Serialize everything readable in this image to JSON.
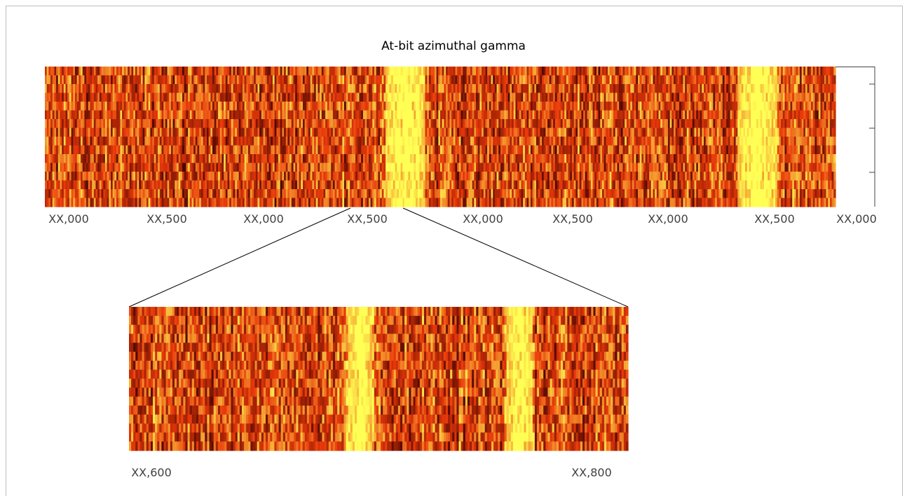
{
  "chart_data": [
    {
      "type": "heatmap",
      "title": "At-bit azimuthal gamma",
      "x_tick_labels": [
        "XX,000",
        "XX,500",
        "XX,000",
        "XX,500",
        "XX,000",
        "XX,500",
        "XX,000",
        "XX,500",
        "XX,000"
      ],
      "colormap": "hot",
      "colors": {
        "low": "#330000",
        "mid": "#e8380a",
        "high": "#ffff55"
      },
      "bright_bands": [
        0.455,
        0.9
      ],
      "rows": 16,
      "grid": false
    },
    {
      "type": "heatmap",
      "role": "zoom inset",
      "x_tick_labels": [
        "XX,600",
        "XX,800"
      ],
      "colormap": "hot",
      "colors": {
        "low": "#330000",
        "mid": "#e8380a",
        "high": "#ffff55"
      },
      "bright_bands": [
        0.46,
        0.78
      ],
      "rows": 16,
      "grid": false
    }
  ]
}
